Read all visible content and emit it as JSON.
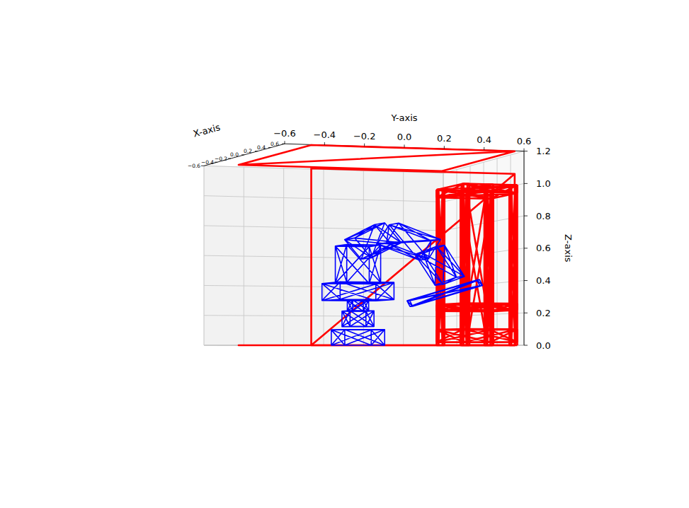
{
  "chart_data": {
    "type": "3d_wireframe",
    "xlabel": "X-axis",
    "ylabel": "Y-axis",
    "zlabel": "Z-axis",
    "xlim": [
      -0.6,
      0.6
    ],
    "ylim": [
      -0.6,
      0.6
    ],
    "zlim": [
      0,
      1.2
    ],
    "xticks": [
      {
        "value": -0.6,
        "label": "−0.6"
      },
      {
        "value": -0.4,
        "label": "−0.4"
      },
      {
        "value": -0.2,
        "label": "−0.2"
      },
      {
        "value": 0,
        "label": "0.0"
      },
      0.2,
      0.4,
      0.6
    ],
    "yticks": [
      {
        "value": -0.6,
        "label": "−0.6"
      },
      {
        "value": -0.4,
        "label": "−0.4"
      },
      {
        "value": -0.2,
        "label": "−0.2"
      },
      {
        "value": 0,
        "label": "0.0"
      },
      0.2,
      0.4,
      0.6
    ],
    "zticks": [
      {
        "value": 0,
        "label": "0.0"
      },
      0.2,
      0.4,
      0.6,
      0.8,
      {
        "value": 1,
        "label": "1.0"
      },
      1.2
    ],
    "grid": true,
    "boxes": [
      {
        "min": [
          -0.5,
          -0.46,
          1.2
        ],
        "max": [
          0.58,
          0.56,
          1.2
        ],
        "color": "#ff0000"
      },
      {
        "min": [
          -0.5,
          -0.46,
          0
        ],
        "max": [
          0.58,
          0.56,
          0
        ],
        "color": "#ff0000"
      },
      {
        "min": [
          0.58,
          -0.46,
          0
        ],
        "max": [
          0.58,
          0.56,
          1.06
        ],
        "color": "#ff0000"
      },
      {
        "min": [
          0.1,
          0.33,
          0.02
        ],
        "max": [
          0.5,
          0.6,
          0.1
        ],
        "color": "#ff0000"
      },
      {
        "min": [
          0.1,
          0.33,
          0.22
        ],
        "max": [
          0.5,
          0.6,
          0.26
        ],
        "color": "#ff0000"
      },
      {
        "min": [
          0.1,
          0.33,
          0.95
        ],
        "max": [
          0.5,
          0.6,
          1.0
        ],
        "color": "#ff0000"
      },
      {
        "min": [
          0.1,
          0.33,
          0
        ],
        "max": [
          0.13,
          0.36,
          1.0
        ],
        "color": "#ff0000"
      },
      {
        "min": [
          0.47,
          0.33,
          0
        ],
        "max": [
          0.5,
          0.36,
          1.0
        ],
        "color": "#ff0000"
      },
      {
        "min": [
          0.1,
          0.57,
          0
        ],
        "max": [
          0.13,
          0.6,
          1.0
        ],
        "color": "#ff0000"
      },
      {
        "min": [
          0.47,
          0.57,
          0
        ],
        "max": [
          0.5,
          0.6,
          1.0
        ],
        "color": "#ff0000"
      },
      {
        "min": [
          0.1,
          0.45,
          0
        ],
        "max": [
          0.5,
          0.48,
          1.0
        ],
        "color": "#ff0000"
      }
    ],
    "links": [
      {
        "start": [
          0,
          -0.03,
          0
        ],
        "end": [
          0,
          -0.03,
          0.1
        ],
        "width": 0.2,
        "color": "#0000ff"
      },
      {
        "start": [
          0,
          -0.03,
          0.12
        ],
        "end": [
          0,
          -0.03,
          0.22
        ],
        "width": 0.12,
        "color": "#0000ff"
      },
      {
        "start": [
          0,
          -0.03,
          0.22
        ],
        "end": [
          0,
          -0.03,
          0.29
        ],
        "width": 0.08,
        "color": "#0000ff"
      },
      {
        "start": [
          0,
          -0.03,
          0.29
        ],
        "end": [
          0,
          -0.03,
          0.4
        ],
        "width": 0.27,
        "color": "#0000ff"
      },
      {
        "start": [
          0,
          -0.03,
          0.4
        ],
        "end": [
          0,
          -0.03,
          0.64
        ],
        "width": 0.17,
        "color": "#0000ff"
      },
      {
        "start": [
          0,
          -0.03,
          0.62
        ],
        "end": [
          0,
          0.12,
          0.72
        ],
        "width": 0.15,
        "color": "#0000ff"
      },
      {
        "start": [
          0,
          0.12,
          0.72
        ],
        "end": [
          0,
          0.33,
          0.62
        ],
        "width": 0.14,
        "color": "#0000ff"
      },
      {
        "start": [
          0,
          0.33,
          0.62
        ],
        "end": [
          0,
          0.43,
          0.42
        ],
        "width": 0.12,
        "color": "#0000ff"
      },
      {
        "start": [
          0,
          0.23,
          0.27
        ],
        "end": [
          0,
          0.58,
          0.41
        ],
        "width": 0.04,
        "color": "#0000ff"
      }
    ]
  }
}
